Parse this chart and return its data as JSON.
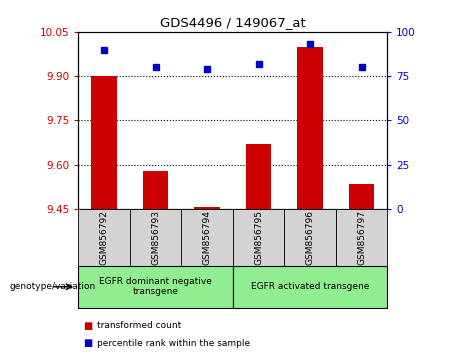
{
  "title": "GDS4496 / 149067_at",
  "samples": [
    "GSM856792",
    "GSM856793",
    "GSM856794",
    "GSM856795",
    "GSM856796",
    "GSM856797"
  ],
  "bar_values": [
    9.9,
    9.58,
    9.456,
    9.67,
    10.0,
    9.535
  ],
  "percentile_values": [
    90,
    80,
    79,
    82,
    93,
    80
  ],
  "ylim_left": [
    9.45,
    10.05
  ],
  "ylim_right": [
    0,
    100
  ],
  "yticks_left": [
    9.45,
    9.6,
    9.75,
    9.9,
    10.05
  ],
  "yticks_right": [
    0,
    25,
    50,
    75,
    100
  ],
  "bar_color": "#cc0000",
  "dot_color": "#0000cc",
  "bar_bottom": 9.45,
  "groups": [
    {
      "label": "EGFR dominant negative\ntransgene",
      "start": 0,
      "end": 3,
      "color": "#90ee90"
    },
    {
      "label": "EGFR activated transgene",
      "start": 3,
      "end": 6,
      "color": "#90ee90"
    }
  ],
  "group_label": "genotype/variation",
  "legend_items": [
    {
      "label": "transformed count",
      "color": "#cc0000"
    },
    {
      "label": "percentile rank within the sample",
      "color": "#0000cc"
    }
  ],
  "grid_linestyle": "dotted",
  "grid_color": "black",
  "tick_color_left": "#cc0000",
  "tick_color_right": "#0000cc",
  "background_color": "#ffffff",
  "plot_bg_color": "#ffffff",
  "sample_box_color": "#d3d3d3"
}
